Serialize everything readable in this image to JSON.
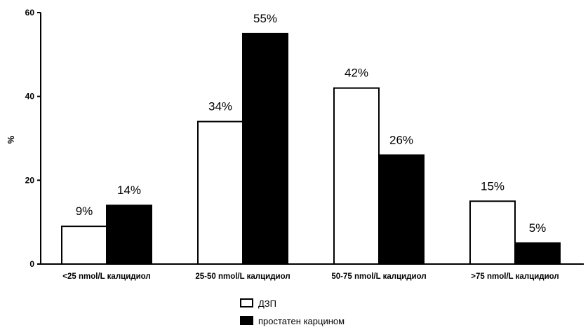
{
  "chart_data": {
    "type": "bar",
    "ylabel": "%",
    "xlabel": "",
    "ylim": [
      0,
      60
    ],
    "yticks": [
      0,
      20,
      40,
      60
    ],
    "grid": false,
    "legend_position": "bottom-center",
    "categories": [
      "<25 nmol/L калцидиол",
      "25-50 nmol/L калцидиол",
      "50-75 nmol/L калцидиол",
      ">75 nmol/L калцидиол"
    ],
    "series": [
      {
        "name": "ДЗП",
        "values": [
          9,
          34,
          42,
          15
        ],
        "fill": "#ffffff",
        "stroke": "#000000",
        "labels": [
          "9%",
          "34%",
          "42%",
          "15%"
        ]
      },
      {
        "name": "простатен карцином",
        "values": [
          14,
          55,
          26,
          5
        ],
        "fill": "#000000",
        "stroke": "#000000",
        "labels": [
          "14%",
          "55%",
          "26%",
          "5%"
        ]
      }
    ]
  }
}
